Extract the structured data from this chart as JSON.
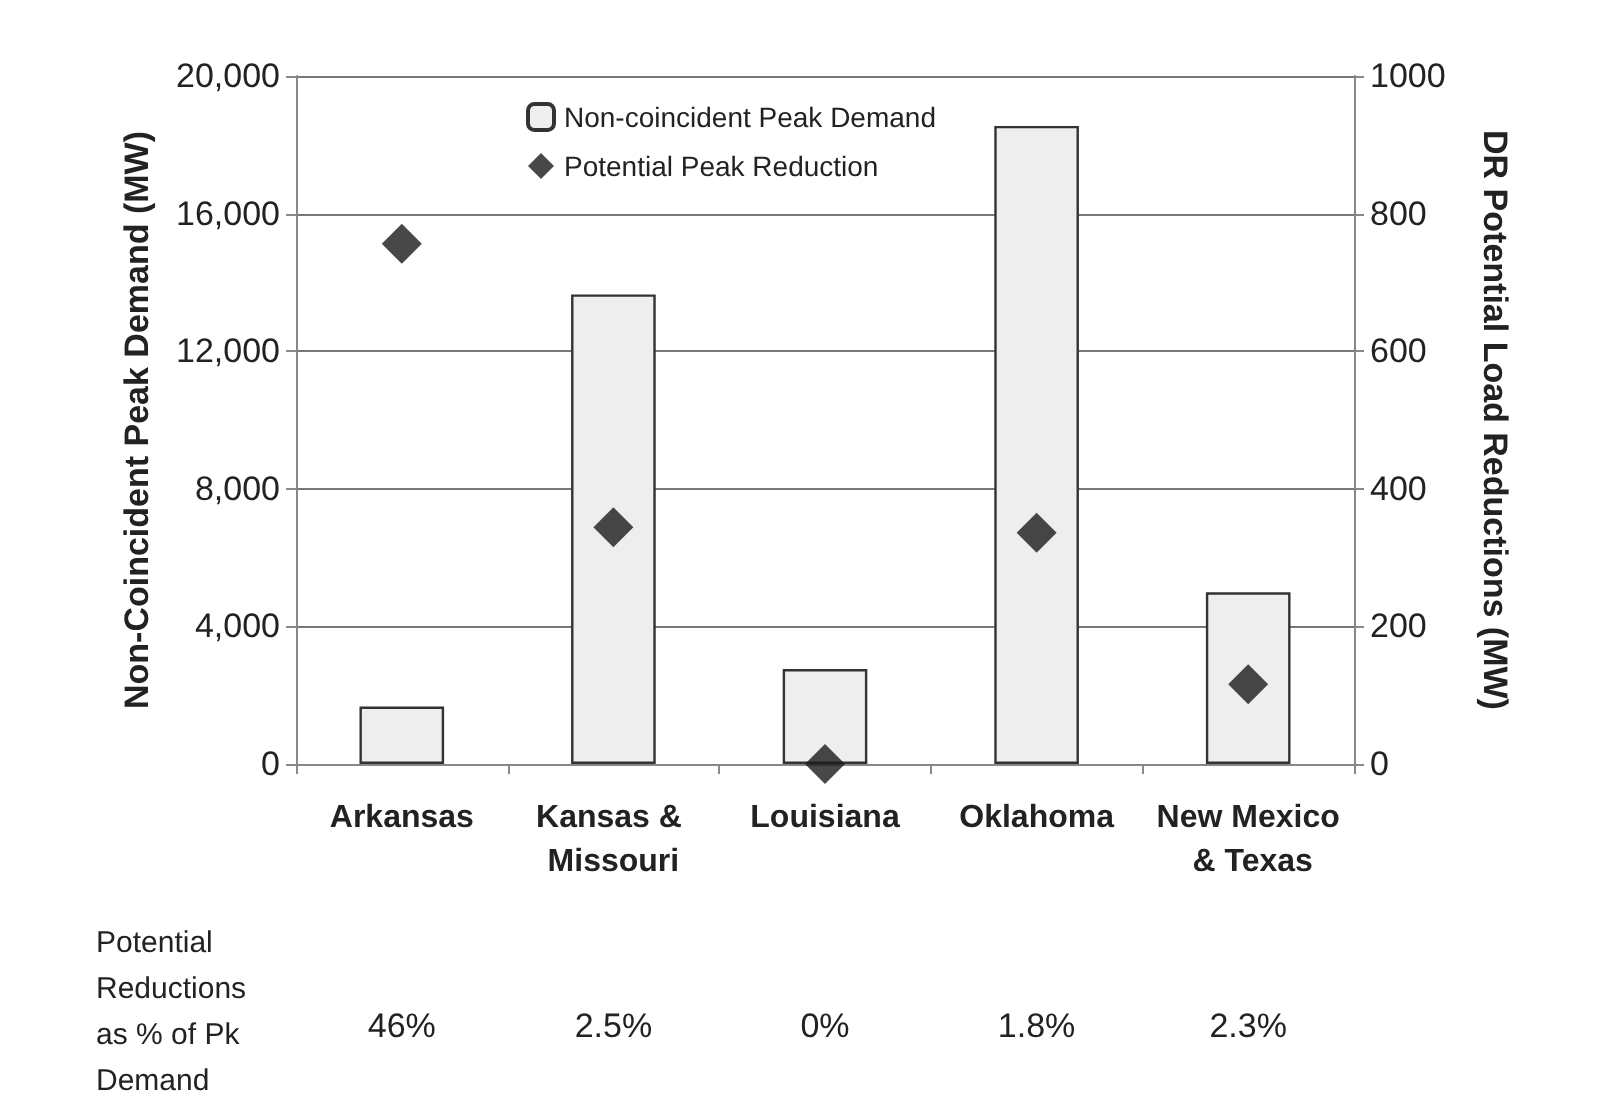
{
  "chart_data": {
    "type": "bar",
    "ylabel": "Non-Coincident Peak Demand (MW)",
    "y2label": "DR Potential Load Reductions (MW)",
    "categories": [
      "Arkansas",
      "Kansas & Missouri",
      "Louisiana",
      "Oklahoma",
      "New Mexico & Texas"
    ],
    "series": [
      {
        "name": "Non-coincident Peak Demand",
        "color": "#eeeeee",
        "values": [
          1670,
          13650,
          2760,
          18550,
          4990
        ]
      },
      {
        "name": "Potential Peak Reduction",
        "type": "scatter",
        "axis": "y2",
        "marker": "diamond",
        "color": "#1a1a1a",
        "values": [
          756,
          344,
          0,
          336,
          116
        ]
      }
    ],
    "ylim": [
      0,
      20000
    ],
    "yticks": [
      {
        "value": 0,
        "label": "0"
      },
      {
        "value": 4000,
        "label": "4,000"
      },
      {
        "value": 8000,
        "label": "8,000"
      },
      {
        "value": 12000,
        "label": "12,000"
      },
      {
        "value": 16000,
        "label": "16,000"
      },
      {
        "value": 20000,
        "label": "20,000"
      }
    ],
    "y2lim": [
      0,
      1000
    ],
    "y2ticks": [
      0,
      200,
      400,
      600,
      800,
      1000
    ],
    "grid": "y",
    "legend": "top",
    "annotations": [
      "Potential Reductions as % of Pk Demand",
      "46%",
      "2.5%",
      "0%",
      "1.8%",
      "2.3%"
    ]
  }
}
